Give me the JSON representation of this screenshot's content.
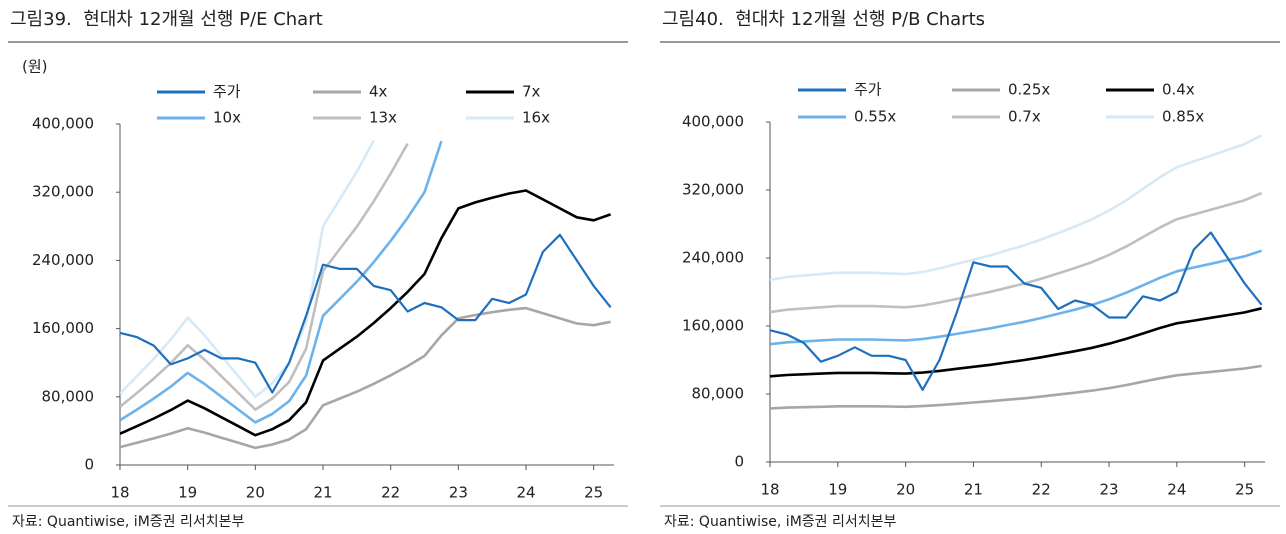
{
  "chart_data": [
    {
      "type": "line",
      "title": "그림39.  현대차 12개월 선행 P/E Chart",
      "y_unit": "(원)",
      "source": "자료: Quantiwise, iM증권 리서치본부",
      "x": [
        18,
        18.25,
        18.5,
        18.75,
        19,
        19.25,
        19.5,
        19.75,
        20,
        20.25,
        20.5,
        20.75,
        21,
        21.25,
        21.5,
        21.75,
        22,
        22.25,
        22.5,
        22.75,
        23,
        23.25,
        23.5,
        23.75,
        24,
        24.25,
        24.5,
        24.75,
        25,
        25.25
      ],
      "xlim": [
        18,
        25.3
      ],
      "xticks": [
        18,
        19,
        20,
        21,
        22,
        23,
        24,
        25
      ],
      "ylim": [
        0,
        400000
      ],
      "yticks": [
        0,
        {
          "value": 80000,
          "label": "80,000"
        },
        {
          "value": 160000,
          "label": "160,000"
        },
        {
          "value": 240000,
          "label": "240,000"
        },
        {
          "value": 320000,
          "label": "320,000"
        },
        {
          "value": 400000,
          "label": "400,000"
        }
      ],
      "series": [
        {
          "name": "주가",
          "color": "#1f6fbf",
          "values": [
            155000,
            150000,
            140000,
            118000,
            125000,
            135000,
            125000,
            125000,
            120000,
            85000,
            120000,
            175000,
            235000,
            230000,
            230000,
            210000,
            205000,
            180000,
            190000,
            185000,
            170000,
            170000,
            195000,
            190000,
            200000,
            250000,
            270000,
            240000,
            210000,
            185000
          ]
        },
        {
          "name": "4x",
          "color": "#a6a6a6",
          "values": [
            21000,
            26000,
            31200,
            36800,
            43200,
            38000,
            32000,
            26000,
            20000,
            24000,
            30000,
            42000,
            70000,
            78000,
            86000,
            95200,
            105200,
            116000,
            128000,
            152000,
            172000,
            176000,
            179200,
            182000,
            184000,
            178000,
            172000,
            166000,
            164000,
            168000
          ]
        },
        {
          "name": "7x",
          "color": "#000000",
          "values": [
            36750,
            45500,
            54600,
            64400,
            75600,
            66500,
            56000,
            45500,
            35000,
            42000,
            52500,
            73500,
            122500,
            136500,
            150500,
            166600,
            184100,
            203000,
            224000,
            266000,
            301000,
            308000,
            313600,
            318500,
            322000,
            311500,
            301000,
            290500,
            287000,
            294000
          ]
        },
        {
          "name": "10x",
          "color": "#6cb2eb",
          "values": [
            52500,
            65000,
            78000,
            92000,
            108000,
            95000,
            80000,
            65000,
            50000,
            60000,
            75000,
            105000,
            175000,
            195000,
            215000,
            238000,
            263000,
            290000,
            320000,
            380000,
            null,
            null,
            null,
            null,
            null,
            null,
            null,
            null,
            null,
            null
          ]
        },
        {
          "name": "13x",
          "color": "#bfbfbf",
          "values": [
            68250,
            84500,
            101400,
            119600,
            140400,
            123500,
            104000,
            84500,
            65000,
            78000,
            97500,
            136500,
            227500,
            253500,
            279500,
            309400,
            341900,
            377000,
            null,
            null,
            null,
            null,
            null,
            null,
            null,
            null,
            null,
            null,
            null,
            null
          ]
        },
        {
          "name": "16x",
          "color": "#d5e9f7",
          "values": [
            84000,
            104000,
            124800,
            147200,
            172800,
            152000,
            128000,
            104000,
            80000,
            96000,
            120000,
            168000,
            280000,
            312000,
            344000,
            380800,
            null,
            null,
            null,
            null,
            null,
            null,
            null,
            null,
            null,
            null,
            null,
            null,
            null,
            null
          ]
        }
      ]
    },
    {
      "type": "line",
      "title": "그림40.  현대차 12개월 선행 P/B Charts",
      "source": "자료: Quantiwise, iM증권 리서치본부",
      "x": [
        18,
        18.25,
        18.5,
        18.75,
        19,
        19.25,
        19.5,
        19.75,
        20,
        20.25,
        20.5,
        20.75,
        21,
        21.25,
        21.5,
        21.75,
        22,
        22.25,
        22.5,
        22.75,
        23,
        23.25,
        23.5,
        23.75,
        24,
        24.25,
        24.5,
        24.75,
        25,
        25.25
      ],
      "xlim": [
        18,
        25.3
      ],
      "xticks": [
        18,
        19,
        20,
        21,
        22,
        23,
        24,
        25
      ],
      "ylim": [
        0,
        400000
      ],
      "yticks": [
        0,
        {
          "value": 80000,
          "label": "80,000"
        },
        {
          "value": 160000,
          "label": "160,000"
        },
        {
          "value": 240000,
          "label": "240,000"
        },
        {
          "value": 320000,
          "label": "320,000"
        },
        {
          "value": 400000,
          "label": "400,000"
        }
      ],
      "series": [
        {
          "name": "주가",
          "color": "#1f6fbf",
          "values": [
            155000,
            150000,
            140000,
            118000,
            125000,
            135000,
            125000,
            125000,
            120000,
            85000,
            120000,
            175000,
            235000,
            230000,
            230000,
            210000,
            205000,
            180000,
            190000,
            185000,
            170000,
            170000,
            195000,
            190000,
            200000,
            250000,
            270000,
            240000,
            210000,
            185000
          ]
        },
        {
          "name": "0.25x",
          "color": "#a6a6a6",
          "values": [
            63000,
            64000,
            64500,
            65000,
            65500,
            65500,
            65500,
            65250,
            65000,
            65750,
            67000,
            68500,
            70000,
            71500,
            73250,
            75000,
            77000,
            79250,
            81500,
            84000,
            87000,
            90500,
            94500,
            98500,
            102000,
            104000,
            106000,
            108000,
            110000,
            113000
          ]
        },
        {
          "name": "0.4x",
          "color": "#000000",
          "values": [
            100800,
            102400,
            103200,
            104000,
            104800,
            104800,
            104800,
            104400,
            104000,
            105200,
            107200,
            109600,
            112000,
            114400,
            117200,
            120000,
            123200,
            126800,
            130400,
            134400,
            139200,
            144800,
            151200,
            157600,
            163200,
            166400,
            169600,
            172800,
            176000,
            180800
          ]
        },
        {
          "name": "0.55x",
          "color": "#6cb2eb",
          "values": [
            138600,
            140800,
            141900,
            143000,
            144100,
            144100,
            144100,
            143550,
            143000,
            144650,
            147400,
            150700,
            154000,
            157300,
            161150,
            165000,
            169400,
            174350,
            179300,
            184800,
            191400,
            199100,
            207900,
            216700,
            224400,
            228800,
            233200,
            237600,
            242000,
            248600
          ]
        },
        {
          "name": "0.7x",
          "color": "#bfbfbf",
          "values": [
            176400,
            179200,
            180600,
            182000,
            183400,
            183400,
            183400,
            182700,
            182000,
            184100,
            187600,
            191800,
            196000,
            200200,
            205100,
            210000,
            215600,
            221900,
            228200,
            235200,
            243600,
            253400,
            264600,
            275800,
            285600,
            291200,
            296800,
            302400,
            308000,
            316400
          ]
        },
        {
          "name": "0.85x",
          "color": "#d5e9f7",
          "values": [
            214200,
            217600,
            219300,
            221000,
            222700,
            222700,
            222700,
            221850,
            221000,
            223550,
            227800,
            232900,
            238000,
            243100,
            249050,
            255000,
            261800,
            269450,
            277100,
            285600,
            295800,
            307700,
            321300,
            334900,
            346800,
            353600,
            360400,
            367200,
            374000,
            384200
          ]
        }
      ]
    }
  ]
}
